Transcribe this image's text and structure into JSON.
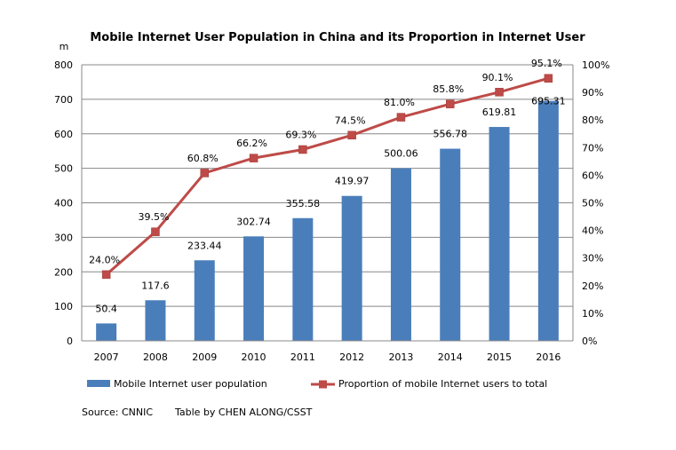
{
  "chart_data": {
    "type": "bar",
    "title": "Mobile Internet User Population in China and its Proportion in Internet User",
    "ylabel": "m",
    "categories": [
      "2007",
      "2008",
      "2009",
      "2010",
      "2011",
      "2012",
      "2013",
      "2014",
      "2015",
      "2016"
    ],
    "series": [
      {
        "name": "Mobile Internet user population",
        "type": "bar",
        "axis": "left",
        "color": "#4a7ebb",
        "values": [
          50.4,
          117.6,
          233.44,
          302.74,
          355.58,
          419.97,
          500.06,
          556.78,
          619.81,
          695.31
        ],
        "labels": [
          "50.4",
          "117.6",
          "233.44",
          "302.74",
          "355.58",
          "419.97",
          "500.06",
          "556.78",
          "619.81",
          "695.31"
        ]
      },
      {
        "name": "Proportion of mobile Internet users to total",
        "type": "line",
        "axis": "right",
        "color": "#be4b48",
        "values": [
          24.0,
          39.5,
          60.8,
          66.2,
          69.3,
          74.5,
          81.0,
          85.8,
          90.1,
          95.1
        ],
        "labels": [
          "24.0%",
          "39.5%",
          "60.8%",
          "66.2%",
          "69.3%",
          "74.5%",
          "81.0%",
          "85.8%",
          "90.1%",
          "95.1%"
        ]
      }
    ],
    "ylim": [
      0,
      800
    ],
    "yticks": [
      "0",
      "100",
      "200",
      "300",
      "400",
      "500",
      "600",
      "700",
      "800"
    ],
    "y2lim": [
      0,
      100
    ],
    "y2ticks": [
      "0%",
      "10%",
      "20%",
      "30%",
      "40%",
      "50%",
      "60%",
      "70%",
      "80%",
      "90%",
      "100%"
    ],
    "grid": true,
    "legend": "bottom"
  },
  "source": {
    "left": "Source:  CNNIC",
    "right": "Table by CHEN ALONG/CSST"
  }
}
